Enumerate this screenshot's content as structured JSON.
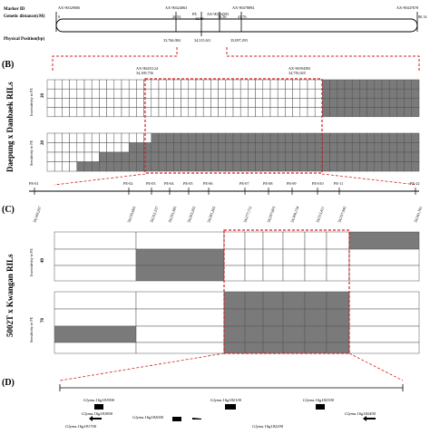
{
  "panel_a": {
    "marker_id_label": "Marker ID",
    "genetic_distance_label": "Genetic distance(cM)",
    "physical_position_label": "Physical Position(bp)",
    "markers": [
      {
        "id": "AX-90329006",
        "cm": "0"
      },
      {
        "id": "AX-90424063",
        "cm": "26.92"
      },
      {
        "id": "PE",
        "cm": "32.80"
      },
      {
        "id": "AX-90394393",
        "cm": "36.56"
      },
      {
        "id": "AX-90478894",
        "cm": "41.76"
      },
      {
        "id": "AX-90447678",
        "cm": "80.14"
      }
    ],
    "physical_positions": [
      "33,766,984",
      "34,315,611",
      "35,097,293"
    ]
  },
  "panel_b": {
    "label": "(B)",
    "population": "Daepung x Danbaek RILs",
    "flank_left": {
      "id": "AX-90431124",
      "pos": "34,169,736"
    },
    "flank_right": {
      "id": "AX-90394393",
      "pos": "34,750,025"
    },
    "resistant_label": "Insensitivity to PE",
    "sensitive_label": "Sensitivity to PE",
    "resistant_n": "20",
    "sensitive_n": "20"
  },
  "panel_c": {
    "label": "(C)",
    "population": "5002T x Kwangan RILs",
    "markers": [
      {
        "id": "PE-01",
        "pos": "34,169,297"
      },
      {
        "id": "PE-02",
        "pos": "34,235,665"
      },
      {
        "id": "PE-03",
        "pos": "34,252,337"
      },
      {
        "id": "PE-04",
        "pos": "34,255,385"
      },
      {
        "id": "PE-05",
        "pos": "34,263,202"
      },
      {
        "id": "PE-06",
        "pos": "34,281,265"
      },
      {
        "id": "PE-07",
        "pos": "34,277,712"
      },
      {
        "id": "PE-08",
        "pos": "34,297,603"
      },
      {
        "id": "PE-09",
        "pos": "34,306,134"
      },
      {
        "id": "PE-010",
        "pos": "34,313,411"
      },
      {
        "id": "PE-11",
        "pos": "34,337,942"
      },
      {
        "id": "PE-12",
        "pos": "34,341,781"
      }
    ],
    "resistant_label": "Insensitivity to PE",
    "sensitive_label": "Sensitivity to PE",
    "resistant_n": "49",
    "sensitive_n": "70"
  },
  "panel_d": {
    "label": "(D)",
    "genes_top": [
      "Glyma.16g181900",
      "Glyma.16g182100",
      "Glyma.16g182300"
    ],
    "genes_mid": [
      "Glyma.16g181800",
      "Glyma.16g182000",
      "Glyma.16g182400"
    ],
    "genes_bottom": [
      "Glyma.16g181700",
      "Glyma.16g182200"
    ]
  },
  "colors": {
    "fill": "#7a7a7a",
    "grid": "#555555",
    "highlight": "#d62020"
  }
}
